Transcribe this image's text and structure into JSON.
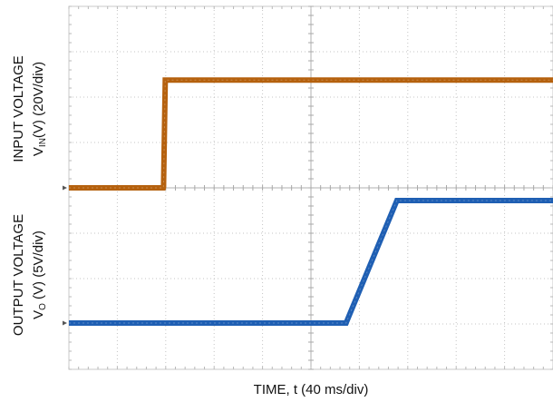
{
  "chart_data": [
    {
      "type": "line",
      "ylabel": "INPUT VOLTAGE",
      "ylabel2_prefix": "V",
      "ylabel2_sub": "IN",
      "ylabel2_suffix": "(V) (20V/div)",
      "y_units_per_div": 20,
      "x": [
        0,
        78,
        78.2,
        79.6,
        80,
        400
      ],
      "series": [
        {
          "color": "#b5610e",
          "values": [
            0,
            0,
            0.5,
            47.5,
            47.5,
            47.5
          ]
        }
      ]
    },
    {
      "type": "line",
      "ylabel": "OUTPUT VOLTAGE",
      "ylabel2_prefix": "V",
      "ylabel2_sub": "O",
      "ylabel2_suffix": " (V) (5V/div)",
      "y_units_per_div": 5,
      "x": [
        0,
        229,
        271,
        400
      ],
      "series": [
        {
          "color": "#1f5fb3",
          "values": [
            0,
            0,
            13.5,
            13.5
          ]
        }
      ]
    }
  ],
  "xlabel": "TIME, t (40 ms/div)",
  "x_units_per_div": 40,
  "x_divisions": 10,
  "y_divisions": 8,
  "grid": true
}
